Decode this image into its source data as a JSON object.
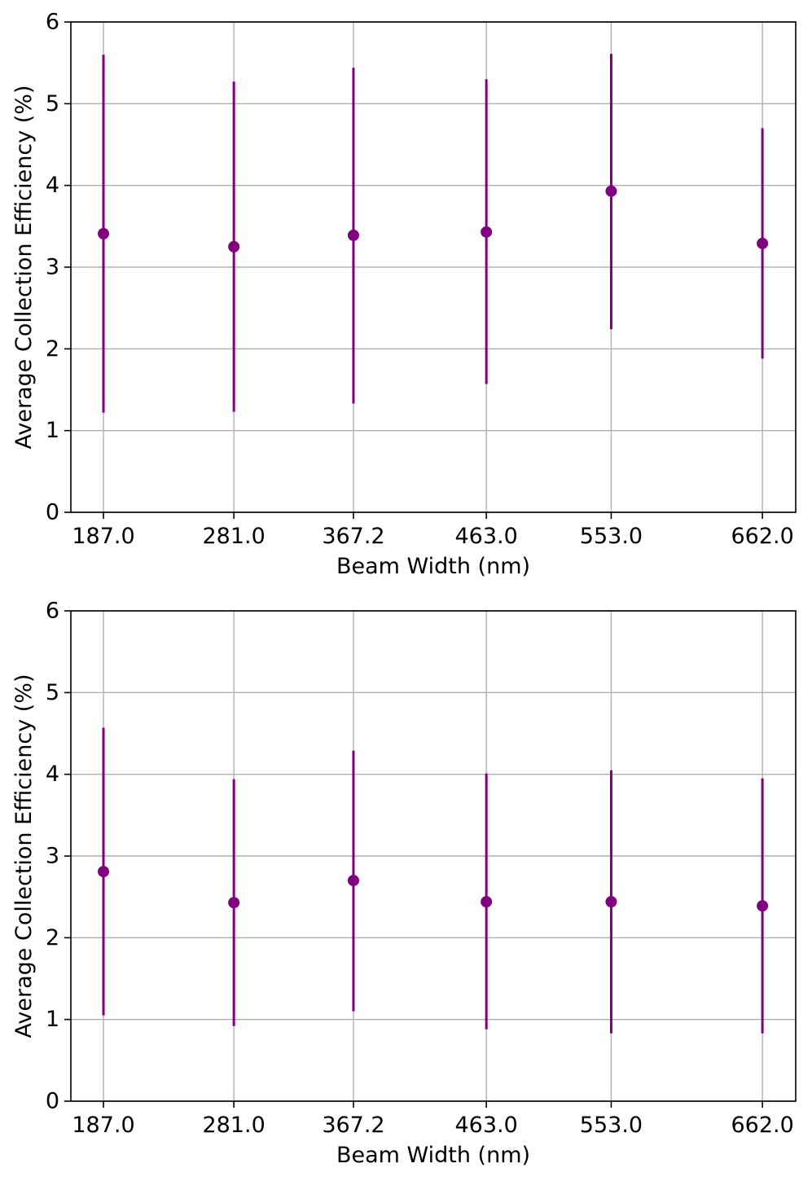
{
  "style": {
    "series_color": "#800080",
    "grid_color": "#b0b0b0",
    "axis_color": "#000000"
  },
  "chart_data": [
    {
      "type": "scatter",
      "title": "",
      "xlabel": "Beam Width (nm)",
      "ylabel": "Average Collection Efficiency (%)",
      "x": [
        187.0,
        281.0,
        367.2,
        463.0,
        553.0,
        662.0
      ],
      "x_tick_labels": [
        "187.0",
        "281.0",
        "367.2",
        "463.0",
        "553.0",
        "662.0"
      ],
      "xlim": [
        163.5,
        686.0
      ],
      "ylim": [
        0,
        6
      ],
      "y_ticks": [
        0,
        1,
        2,
        3,
        4,
        5,
        6
      ],
      "grid": true,
      "legend": "none",
      "series": [
        {
          "name": "",
          "values": [
            3.41,
            3.25,
            3.39,
            3.43,
            3.93,
            3.29
          ],
          "err_low": [
            1.22,
            1.23,
            1.33,
            1.57,
            2.24,
            1.88
          ],
          "err_high": [
            5.6,
            5.27,
            5.44,
            5.3,
            5.61,
            4.7
          ]
        }
      ]
    },
    {
      "type": "scatter",
      "title": "",
      "xlabel": "Beam Width (nm)",
      "ylabel": "Average Collection Efficiency (%)",
      "x": [
        187.0,
        281.0,
        367.2,
        463.0,
        553.0,
        662.0
      ],
      "x_tick_labels": [
        "187.0",
        "281.0",
        "367.2",
        "463.0",
        "553.0",
        "662.0"
      ],
      "xlim": [
        163.5,
        686.0
      ],
      "ylim": [
        0,
        6
      ],
      "y_ticks": [
        0,
        1,
        2,
        3,
        4,
        5,
        6
      ],
      "grid": true,
      "legend": "none",
      "series": [
        {
          "name": "",
          "values": [
            2.81,
            2.43,
            2.7,
            2.44,
            2.44,
            2.39
          ],
          "err_low": [
            1.05,
            0.92,
            1.1,
            0.88,
            0.83,
            0.83
          ],
          "err_high": [
            4.57,
            3.94,
            4.29,
            4.01,
            4.05,
            3.95
          ]
        }
      ]
    }
  ]
}
